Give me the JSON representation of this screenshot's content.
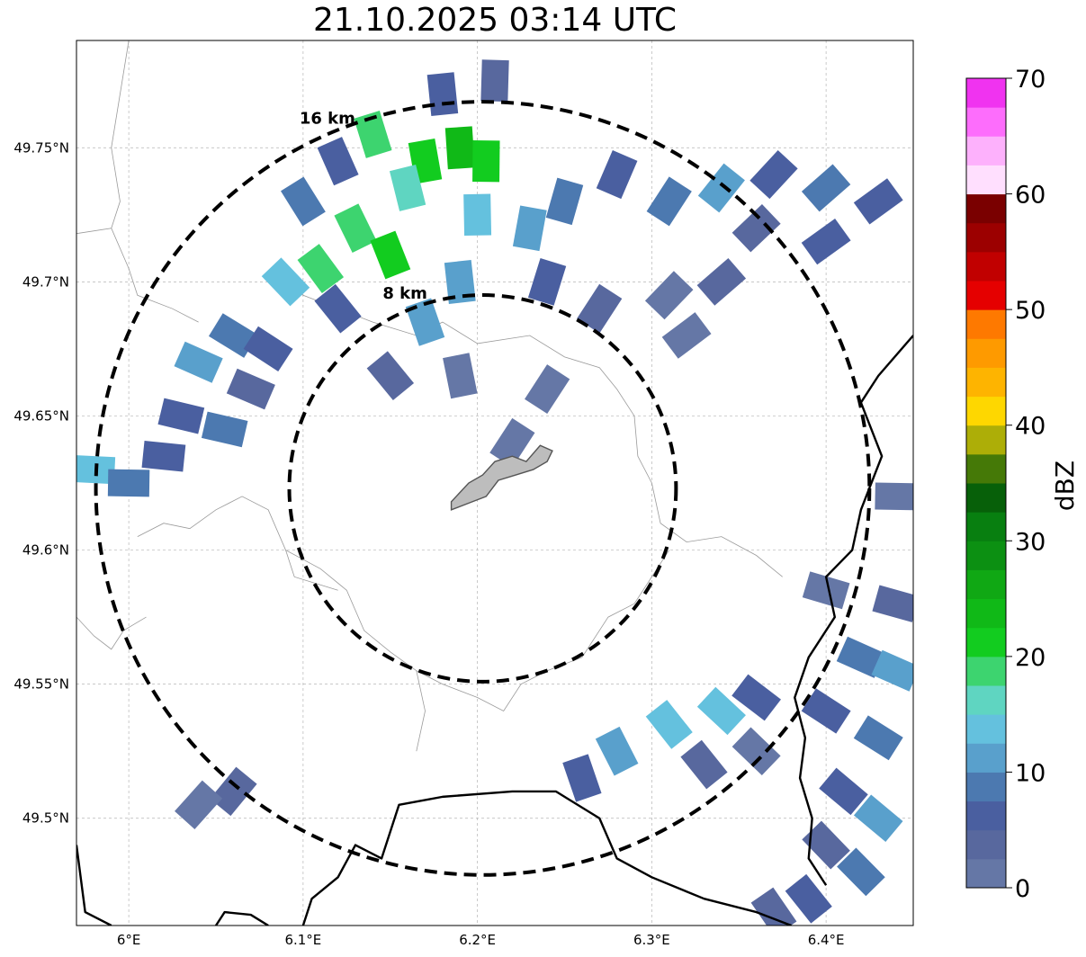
{
  "title": "21.10.2025 03:14 UTC",
  "map": {
    "lon_range": [
      5.97,
      6.45
    ],
    "lat_range": [
      49.46,
      49.79
    ],
    "lon_ticks": [
      {
        "value": 6.0,
        "label": "6°E"
      },
      {
        "value": 6.1,
        "label": "6.1°E"
      },
      {
        "value": 6.2,
        "label": "6.2°E"
      },
      {
        "value": 6.3,
        "label": "6.3°E"
      },
      {
        "value": 6.4,
        "label": "6.4°E"
      }
    ],
    "lat_ticks": [
      {
        "value": 49.5,
        "label": "49.5°N"
      },
      {
        "value": 49.55,
        "label": "49.55°N"
      },
      {
        "value": 49.6,
        "label": "49.6°N"
      },
      {
        "value": 49.65,
        "label": "49.65°N"
      },
      {
        "value": 49.7,
        "label": "49.7°N"
      },
      {
        "value": 49.75,
        "label": "49.75°N"
      }
    ],
    "gridlines": true,
    "center": {
      "lon": 6.203,
      "lat": 49.623
    },
    "rings": [
      {
        "radius_km": 8,
        "label": "8 km"
      },
      {
        "radius_km": 16,
        "label": "16 km"
      }
    ],
    "colors": {
      "ring": "#000000",
      "border": "#000000",
      "admin": "#9a9a9a",
      "city_fill": "#bdbdbd",
      "city_edge": "#555555"
    }
  },
  "colorbar": {
    "label": "dBZ",
    "min": 0,
    "max": 70,
    "step": 2.5,
    "ticks": [
      {
        "value": 0,
        "label": "0"
      },
      {
        "value": 10,
        "label": "10"
      },
      {
        "value": 20,
        "label": "20"
      },
      {
        "value": 30,
        "label": "30"
      },
      {
        "value": 40,
        "label": "40"
      },
      {
        "value": 50,
        "label": "50"
      },
      {
        "value": 60,
        "label": "60"
      },
      {
        "value": 70,
        "label": "70"
      }
    ],
    "colors": [
      "#6577a6",
      "#58689e",
      "#4a5fa0",
      "#4c79b0",
      "#59a0cc",
      "#64c1de",
      "#5fd5c1",
      "#3dd46f",
      "#12cc1f",
      "#10b917",
      "#10a814",
      "#0c9012",
      "#087f10",
      "#076009",
      "#457907",
      "#adae07",
      "#fed700",
      "#feb400",
      "#fe9a00",
      "#fe7900",
      "#e50000",
      "#c10000",
      "#9c0000",
      "#7a0000",
      "#ffdffe",
      "#fdb1fc",
      "#fd6dfc",
      "#f033f0"
    ]
  },
  "precip_cells": [
    {
      "lon": 6.14,
      "lat": 49.755,
      "dbz": 18
    },
    {
      "lon": 6.17,
      "lat": 49.745,
      "dbz": 22
    },
    {
      "lon": 6.19,
      "lat": 49.75,
      "dbz": 24
    },
    {
      "lon": 6.205,
      "lat": 49.745,
      "dbz": 22
    },
    {
      "lon": 6.16,
      "lat": 49.735,
      "dbz": 16
    },
    {
      "lon": 6.13,
      "lat": 49.72,
      "dbz": 18
    },
    {
      "lon": 6.15,
      "lat": 49.71,
      "dbz": 20
    },
    {
      "lon": 6.11,
      "lat": 49.705,
      "dbz": 18
    },
    {
      "lon": 6.09,
      "lat": 49.7,
      "dbz": 14
    },
    {
      "lon": 6.2,
      "lat": 49.725,
      "dbz": 14
    },
    {
      "lon": 6.23,
      "lat": 49.72,
      "dbz": 12
    },
    {
      "lon": 6.25,
      "lat": 49.73,
      "dbz": 8
    },
    {
      "lon": 6.28,
      "lat": 49.74,
      "dbz": 6
    },
    {
      "lon": 6.31,
      "lat": 49.73,
      "dbz": 8
    },
    {
      "lon": 6.34,
      "lat": 49.735,
      "dbz": 10
    },
    {
      "lon": 6.37,
      "lat": 49.74,
      "dbz": 6
    },
    {
      "lon": 6.4,
      "lat": 49.735,
      "dbz": 8
    },
    {
      "lon": 6.43,
      "lat": 49.73,
      "dbz": 6
    },
    {
      "lon": 6.36,
      "lat": 49.72,
      "dbz": 4
    },
    {
      "lon": 6.4,
      "lat": 49.715,
      "dbz": 6
    },
    {
      "lon": 6.1,
      "lat": 49.73,
      "dbz": 8
    },
    {
      "lon": 6.12,
      "lat": 49.745,
      "dbz": 6
    },
    {
      "lon": 6.18,
      "lat": 49.77,
      "dbz": 6
    },
    {
      "lon": 6.21,
      "lat": 49.775,
      "dbz": 4
    },
    {
      "lon": 6.06,
      "lat": 49.68,
      "dbz": 8
    },
    {
      "lon": 6.04,
      "lat": 49.67,
      "dbz": 12
    },
    {
      "lon": 6.08,
      "lat": 49.675,
      "dbz": 6
    },
    {
      "lon": 6.03,
      "lat": 49.65,
      "dbz": 6
    },
    {
      "lon": 6.055,
      "lat": 49.645,
      "dbz": 8
    },
    {
      "lon": 6.02,
      "lat": 49.635,
      "dbz": 6
    },
    {
      "lon": 5.98,
      "lat": 49.63,
      "dbz": 14
    },
    {
      "lon": 6.0,
      "lat": 49.625,
      "dbz": 8
    },
    {
      "lon": 6.07,
      "lat": 49.66,
      "dbz": 4
    },
    {
      "lon": 6.12,
      "lat": 49.69,
      "dbz": 6
    },
    {
      "lon": 6.17,
      "lat": 49.685,
      "dbz": 10
    },
    {
      "lon": 6.19,
      "lat": 49.7,
      "dbz": 10
    },
    {
      "lon": 6.24,
      "lat": 49.7,
      "dbz": 6
    },
    {
      "lon": 6.27,
      "lat": 49.69,
      "dbz": 4
    },
    {
      "lon": 6.31,
      "lat": 49.695,
      "dbz": 2
    },
    {
      "lon": 6.34,
      "lat": 49.7,
      "dbz": 4
    },
    {
      "lon": 6.15,
      "lat": 49.665,
      "dbz": 4
    },
    {
      "lon": 6.19,
      "lat": 49.665,
      "dbz": 2
    },
    {
      "lon": 6.24,
      "lat": 49.66,
      "dbz": 2
    },
    {
      "lon": 6.22,
      "lat": 49.64,
      "dbz": 2
    },
    {
      "lon": 6.32,
      "lat": 49.68,
      "dbz": 2
    },
    {
      "lon": 6.31,
      "lat": 49.535,
      "dbz": 14
    },
    {
      "lon": 6.34,
      "lat": 49.54,
      "dbz": 14
    },
    {
      "lon": 6.28,
      "lat": 49.525,
      "dbz": 12
    },
    {
      "lon": 6.26,
      "lat": 49.515,
      "dbz": 6
    },
    {
      "lon": 6.36,
      "lat": 49.545,
      "dbz": 6
    },
    {
      "lon": 6.33,
      "lat": 49.52,
      "dbz": 4
    },
    {
      "lon": 6.36,
      "lat": 49.525,
      "dbz": 2
    },
    {
      "lon": 6.42,
      "lat": 49.56,
      "dbz": 8
    },
    {
      "lon": 6.44,
      "lat": 49.555,
      "dbz": 12
    },
    {
      "lon": 6.4,
      "lat": 49.54,
      "dbz": 6
    },
    {
      "lon": 6.43,
      "lat": 49.53,
      "dbz": 8
    },
    {
      "lon": 6.41,
      "lat": 49.51,
      "dbz": 6
    },
    {
      "lon": 6.43,
      "lat": 49.5,
      "dbz": 10
    },
    {
      "lon": 6.4,
      "lat": 49.49,
      "dbz": 4
    },
    {
      "lon": 6.42,
      "lat": 49.48,
      "dbz": 8
    },
    {
      "lon": 6.39,
      "lat": 49.47,
      "dbz": 6
    },
    {
      "lon": 6.37,
      "lat": 49.465,
      "dbz": 4
    },
    {
      "lon": 6.44,
      "lat": 49.58,
      "dbz": 4
    },
    {
      "lon": 6.4,
      "lat": 49.585,
      "dbz": 2
    },
    {
      "lon": 6.44,
      "lat": 49.62,
      "dbz": 2
    },
    {
      "lon": 6.06,
      "lat": 49.51,
      "dbz": 4
    },
    {
      "lon": 6.04,
      "lat": 49.505,
      "dbz": 2
    }
  ],
  "borders": [
    [
      [
        6.4,
        49.475
      ],
      [
        6.39,
        49.485
      ],
      [
        6.392,
        49.5
      ],
      [
        6.385,
        49.515
      ],
      [
        6.388,
        49.53
      ],
      [
        6.382,
        49.545
      ],
      [
        6.39,
        49.56
      ],
      [
        6.405,
        49.575
      ],
      [
        6.4,
        49.59
      ],
      [
        6.415,
        49.6
      ],
      [
        6.42,
        49.615
      ],
      [
        6.432,
        49.635
      ],
      [
        6.42,
        49.655
      ],
      [
        6.43,
        49.665
      ],
      [
        6.45,
        49.68
      ]
    ],
    [
      [
        6.1,
        49.46
      ],
      [
        6.105,
        49.47
      ],
      [
        6.12,
        49.478
      ],
      [
        6.13,
        49.49
      ],
      [
        6.145,
        49.485
      ],
      [
        6.155,
        49.505
      ],
      [
        6.18,
        49.508
      ],
      [
        6.22,
        49.51
      ],
      [
        6.245,
        49.51
      ],
      [
        6.27,
        49.5
      ],
      [
        6.28,
        49.485
      ],
      [
        6.3,
        49.478
      ],
      [
        6.33,
        49.47
      ],
      [
        6.36,
        49.465
      ],
      [
        6.38,
        49.46
      ]
    ],
    [
      [
        5.97,
        49.49
      ],
      [
        5.975,
        49.465
      ],
      [
        5.99,
        49.46
      ]
    ],
    [
      [
        6.05,
        49.46
      ],
      [
        6.055,
        49.465
      ],
      [
        6.07,
        49.464
      ],
      [
        6.08,
        49.46
      ]
    ]
  ],
  "admin_lines": [
    [
      [
        6.0,
        49.79
      ],
      [
        5.995,
        49.77
      ],
      [
        5.99,
        49.75
      ],
      [
        5.995,
        49.73
      ],
      [
        5.99,
        49.72
      ],
      [
        5.97,
        49.718
      ]
    ],
    [
      [
        5.99,
        49.72
      ],
      [
        6.0,
        49.705
      ],
      [
        6.005,
        49.695
      ],
      [
        6.025,
        49.69
      ],
      [
        6.04,
        49.685
      ]
    ],
    [
      [
        6.085,
        49.7
      ],
      [
        6.1,
        49.695
      ],
      [
        6.12,
        49.69
      ],
      [
        6.14,
        49.685
      ],
      [
        6.165,
        49.68
      ],
      [
        6.18,
        49.685
      ],
      [
        6.2,
        49.677
      ],
      [
        6.23,
        49.68
      ],
      [
        6.25,
        49.672
      ],
      [
        6.27,
        49.668
      ],
      [
        6.28,
        49.66
      ],
      [
        6.29,
        49.65
      ],
      [
        6.292,
        49.635
      ],
      [
        6.3,
        49.625
      ],
      [
        6.305,
        49.61
      ],
      [
        6.32,
        49.603
      ],
      [
        6.34,
        49.605
      ],
      [
        6.36,
        49.598
      ],
      [
        6.375,
        49.59
      ]
    ],
    [
      [
        6.005,
        49.605
      ],
      [
        6.02,
        49.61
      ],
      [
        6.035,
        49.608
      ],
      [
        6.05,
        49.615
      ],
      [
        6.065,
        49.62
      ],
      [
        6.08,
        49.615
      ],
      [
        6.09,
        49.6
      ],
      [
        6.11,
        49.593
      ],
      [
        6.125,
        49.585
      ],
      [
        6.135,
        49.57
      ],
      [
        6.15,
        49.562
      ],
      [
        6.165,
        49.555
      ],
      [
        6.17,
        49.54
      ],
      [
        6.165,
        49.525
      ]
    ],
    [
      [
        5.97,
        49.575
      ],
      [
        5.98,
        49.568
      ],
      [
        5.99,
        49.563
      ],
      [
        5.997,
        49.57
      ],
      [
        6.01,
        49.575
      ]
    ],
    [
      [
        6.09,
        49.6
      ],
      [
        6.095,
        49.59
      ],
      [
        6.12,
        49.585
      ]
    ],
    [
      [
        6.165,
        49.555
      ],
      [
        6.18,
        49.55
      ],
      [
        6.2,
        49.545
      ],
      [
        6.215,
        49.54
      ],
      [
        6.225,
        49.55
      ],
      [
        6.24,
        49.555
      ],
      [
        6.26,
        49.56
      ],
      [
        6.275,
        49.575
      ],
      [
        6.29,
        49.58
      ]
    ],
    [
      [
        6.29,
        49.58
      ],
      [
        6.3,
        49.59
      ],
      [
        6.31,
        49.6
      ]
    ]
  ],
  "city": [
    [
      6.185,
      49.618
    ],
    [
      6.195,
      49.625
    ],
    [
      6.203,
      49.628
    ],
    [
      6.21,
      49.633
    ],
    [
      6.22,
      49.635
    ],
    [
      6.228,
      49.633
    ],
    [
      6.236,
      49.639
    ],
    [
      6.243,
      49.637
    ],
    [
      6.24,
      49.633
    ],
    [
      6.232,
      49.63
    ],
    [
      6.222,
      49.628
    ],
    [
      6.212,
      49.626
    ],
    [
      6.205,
      49.62
    ],
    [
      6.197,
      49.618
    ],
    [
      6.185,
      49.615
    ]
  ]
}
